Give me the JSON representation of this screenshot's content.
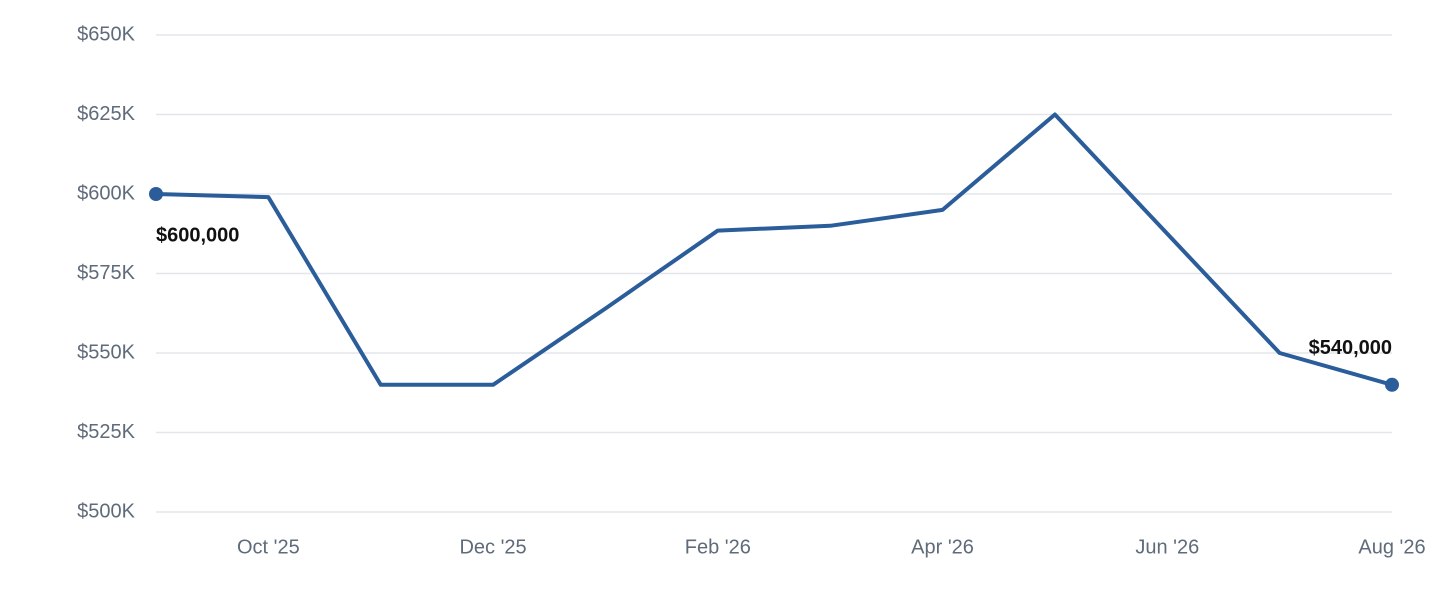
{
  "chart_data": {
    "type": "line",
    "categories": [
      null,
      "Oct '25",
      null,
      "Dec '25",
      null,
      "Feb '26",
      null,
      "Apr '26",
      null,
      "Jun '26",
      null,
      "Aug '26"
    ],
    "values": [
      600000,
      599000,
      540000,
      540000,
      564000,
      588500,
      590000,
      595000,
      625000,
      587500,
      550000,
      540000
    ],
    "value_labels": [
      "$600,000",
      null,
      null,
      null,
      null,
      null,
      null,
      null,
      null,
      null,
      null,
      "$540,000"
    ],
    "color": "#2a5d9a",
    "ylim": [
      500000,
      650000
    ],
    "yticks": [
      {
        "value": 500000,
        "label": "$500K"
      },
      {
        "value": 525000,
        "label": "$525K"
      },
      {
        "value": 550000,
        "label": "$550K"
      },
      {
        "value": 575000,
        "label": "$575K"
      },
      {
        "value": 600000,
        "label": "$600K"
      },
      {
        "value": 625000,
        "label": "$625K"
      },
      {
        "value": 650000,
        "label": "$650K"
      }
    ],
    "grid": true
  }
}
